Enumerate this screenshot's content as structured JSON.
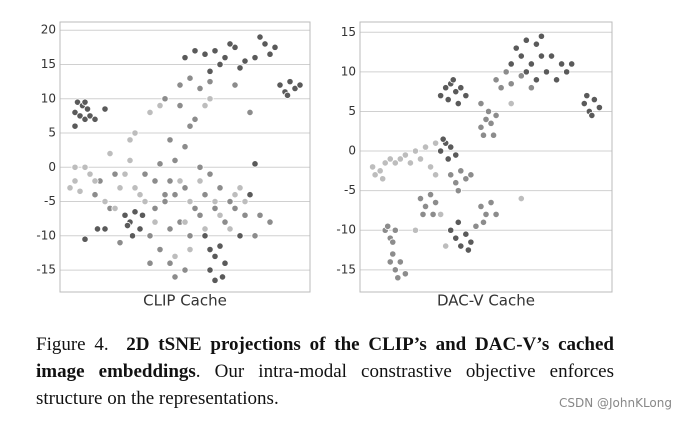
{
  "chart_data": [
    {
      "type": "scatter",
      "xlabel": "CLIP Cache",
      "xlim": [
        0,
        100
      ],
      "ylim": [
        -18.2,
        21.2
      ],
      "yticks": [
        20,
        15,
        10,
        5,
        0,
        -5,
        -10,
        -15
      ],
      "grid": true,
      "series": [
        {
          "color": "#5a5a5a",
          "x": [
            6,
            7,
            9,
            10,
            8,
            10,
            12,
            14,
            6,
            11,
            18,
            50,
            54,
            58,
            62,
            66,
            70,
            74,
            78,
            82,
            84,
            60,
            64,
            72,
            86,
            80,
            68,
            88,
            90,
            92,
            94,
            96,
            91,
            26,
            28,
            30,
            32,
            29,
            27,
            33,
            15,
            18,
            10,
            58,
            60,
            62,
            64,
            66,
            60,
            65,
            62,
            76,
            78,
            72
          ],
          "values": [
            8,
            9.5,
            9,
            9.5,
            7.5,
            7,
            7.5,
            7,
            6,
            8.5,
            8.5,
            16,
            17,
            16.5,
            17,
            16,
            17.5,
            15.5,
            16,
            18,
            16.5,
            14,
            15,
            14.5,
            17.5,
            19,
            18,
            12,
            11,
            12.5,
            11.5,
            12,
            10.5,
            -7,
            -8,
            -6.5,
            -9,
            -10,
            -8.5,
            -7,
            -9,
            -9,
            -10.5,
            -10,
            -12,
            -13,
            -11.5,
            -14,
            -15,
            -16,
            -16.5,
            -4,
            0.5,
            -10
          ]
        },
        {
          "color": "#8c8c8c",
          "x": [
            48,
            52,
            56,
            60,
            70,
            76,
            42,
            48,
            52,
            50,
            44,
            46,
            54,
            60,
            34,
            38,
            40,
            44,
            46,
            50,
            54,
            38,
            42,
            36,
            40,
            44,
            48,
            52,
            56,
            58,
            62,
            66,
            70,
            74,
            80,
            84,
            78,
            24,
            20,
            14,
            36,
            44,
            46,
            50,
            42,
            56,
            64,
            68,
            16,
            22
          ],
          "values": [
            12,
            13,
            11.5,
            12.5,
            12,
            8,
            10,
            9,
            6,
            3,
            4,
            1,
            7,
            -1,
            -1,
            -2,
            0.5,
            -2,
            -4,
            -3,
            -6,
            -6,
            -5,
            -10,
            -12,
            -9,
            -8,
            -10,
            -7,
            -4,
            -6,
            -8,
            -6,
            -7,
            -7,
            -8,
            -10,
            -11,
            -6,
            -4,
            -14,
            -14,
            -16,
            -15,
            -4,
            0,
            -3,
            -5,
            -2,
            -1
          ]
        },
        {
          "color": "#bdbdbd",
          "x": [
            4,
            6,
            8,
            10,
            12,
            14,
            6,
            18,
            22,
            24,
            26,
            28,
            30,
            32,
            34,
            48,
            52,
            56,
            62,
            64,
            68,
            72,
            70,
            74,
            20,
            28,
            30,
            36,
            40,
            58,
            60,
            52,
            46,
            38,
            50,
            58
          ],
          "values": [
            -3,
            -2,
            -3.5,
            0,
            -1,
            -2,
            0,
            -5,
            -6,
            -3,
            -1,
            1,
            -3,
            -4,
            -5,
            -2,
            -5,
            -2,
            -5,
            -7,
            -9,
            -3,
            -4,
            -5,
            2,
            4,
            5,
            8,
            9,
            9,
            10,
            -12,
            -13,
            -8,
            -8,
            -9
          ]
        }
      ]
    },
    {
      "type": "scatter",
      "xlabel": "DAC-V Cache",
      "xlim": [
        0,
        100
      ],
      "ylim": [
        -17.8,
        16.3
      ],
      "yticks": [
        15,
        10,
        5,
        0,
        -5,
        -10,
        -15
      ],
      "grid": true,
      "series": [
        {
          "color": "#5a5a5a",
          "x": [
            62,
            66,
            70,
            72,
            64,
            68,
            76,
            80,
            82,
            74,
            70,
            66,
            78,
            60,
            84,
            72,
            32,
            34,
            36,
            38,
            40,
            42,
            35,
            39,
            37,
            89,
            91,
            93,
            95,
            92,
            90,
            32,
            34,
            36,
            38,
            35,
            33,
            36,
            38,
            40,
            42,
            44,
            39,
            43
          ],
          "values": [
            13,
            14,
            13.5,
            12,
            12,
            11,
            12,
            11,
            10,
            10,
            9,
            10,
            9,
            11,
            11,
            14.5,
            7,
            8,
            8.5,
            7.5,
            8,
            7,
            6.5,
            6,
            9,
            6,
            5,
            6.5,
            5.5,
            4.5,
            7,
            0,
            1,
            0.5,
            -0.5,
            -1,
            1.5,
            -10,
            -11,
            -12,
            -10.5,
            -11.5,
            -9,
            -12.5
          ]
        },
        {
          "color": "#8c8c8c",
          "x": [
            56,
            60,
            64,
            68,
            58,
            54,
            48,
            48,
            50,
            52,
            54,
            49,
            53,
            51,
            36,
            38,
            40,
            42,
            39,
            44,
            24,
            26,
            28,
            30,
            25,
            29,
            48,
            50,
            52,
            54,
            49,
            46,
            10,
            12,
            14,
            11,
            13,
            12,
            14,
            16,
            18,
            15,
            13
          ],
          "values": [
            8,
            8.5,
            9.5,
            8,
            10,
            9,
            6,
            3,
            4,
            3.5,
            4.5,
            2,
            2,
            5,
            -3,
            -4,
            -2.5,
            -3.5,
            -5,
            -3,
            -6,
            -7,
            -5.5,
            -6.5,
            -8,
            -8,
            -7,
            -8,
            -6.5,
            -8,
            -9,
            -9.5,
            -10,
            -11,
            -10,
            -9.5,
            -11.5,
            -14,
            -15,
            -14,
            -15.5,
            -16,
            -13
          ]
        },
        {
          "color": "#bdbdbd",
          "x": [
            5,
            6,
            8,
            10,
            12,
            14,
            16,
            18,
            20,
            22,
            24,
            26,
            28,
            9,
            30,
            60,
            64,
            30,
            22,
            32,
            34
          ],
          "values": [
            -2,
            -3,
            -2.5,
            -1.5,
            -1,
            -1.5,
            -1,
            -0.5,
            -1.5,
            0,
            -1,
            0.5,
            -2,
            -3.5,
            1,
            6,
            -6,
            -3,
            -10,
            -8,
            -12
          ]
        }
      ]
    }
  ],
  "caption": {
    "label": "Figure 4.",
    "bold": "2D tSNE projections of the CLIP’s and DAC-V’s cached image embeddings",
    "rest": ". Our intra-modal constrastive objective enforces structure on the representations."
  },
  "watermark": "CSDN @JohnKLong"
}
